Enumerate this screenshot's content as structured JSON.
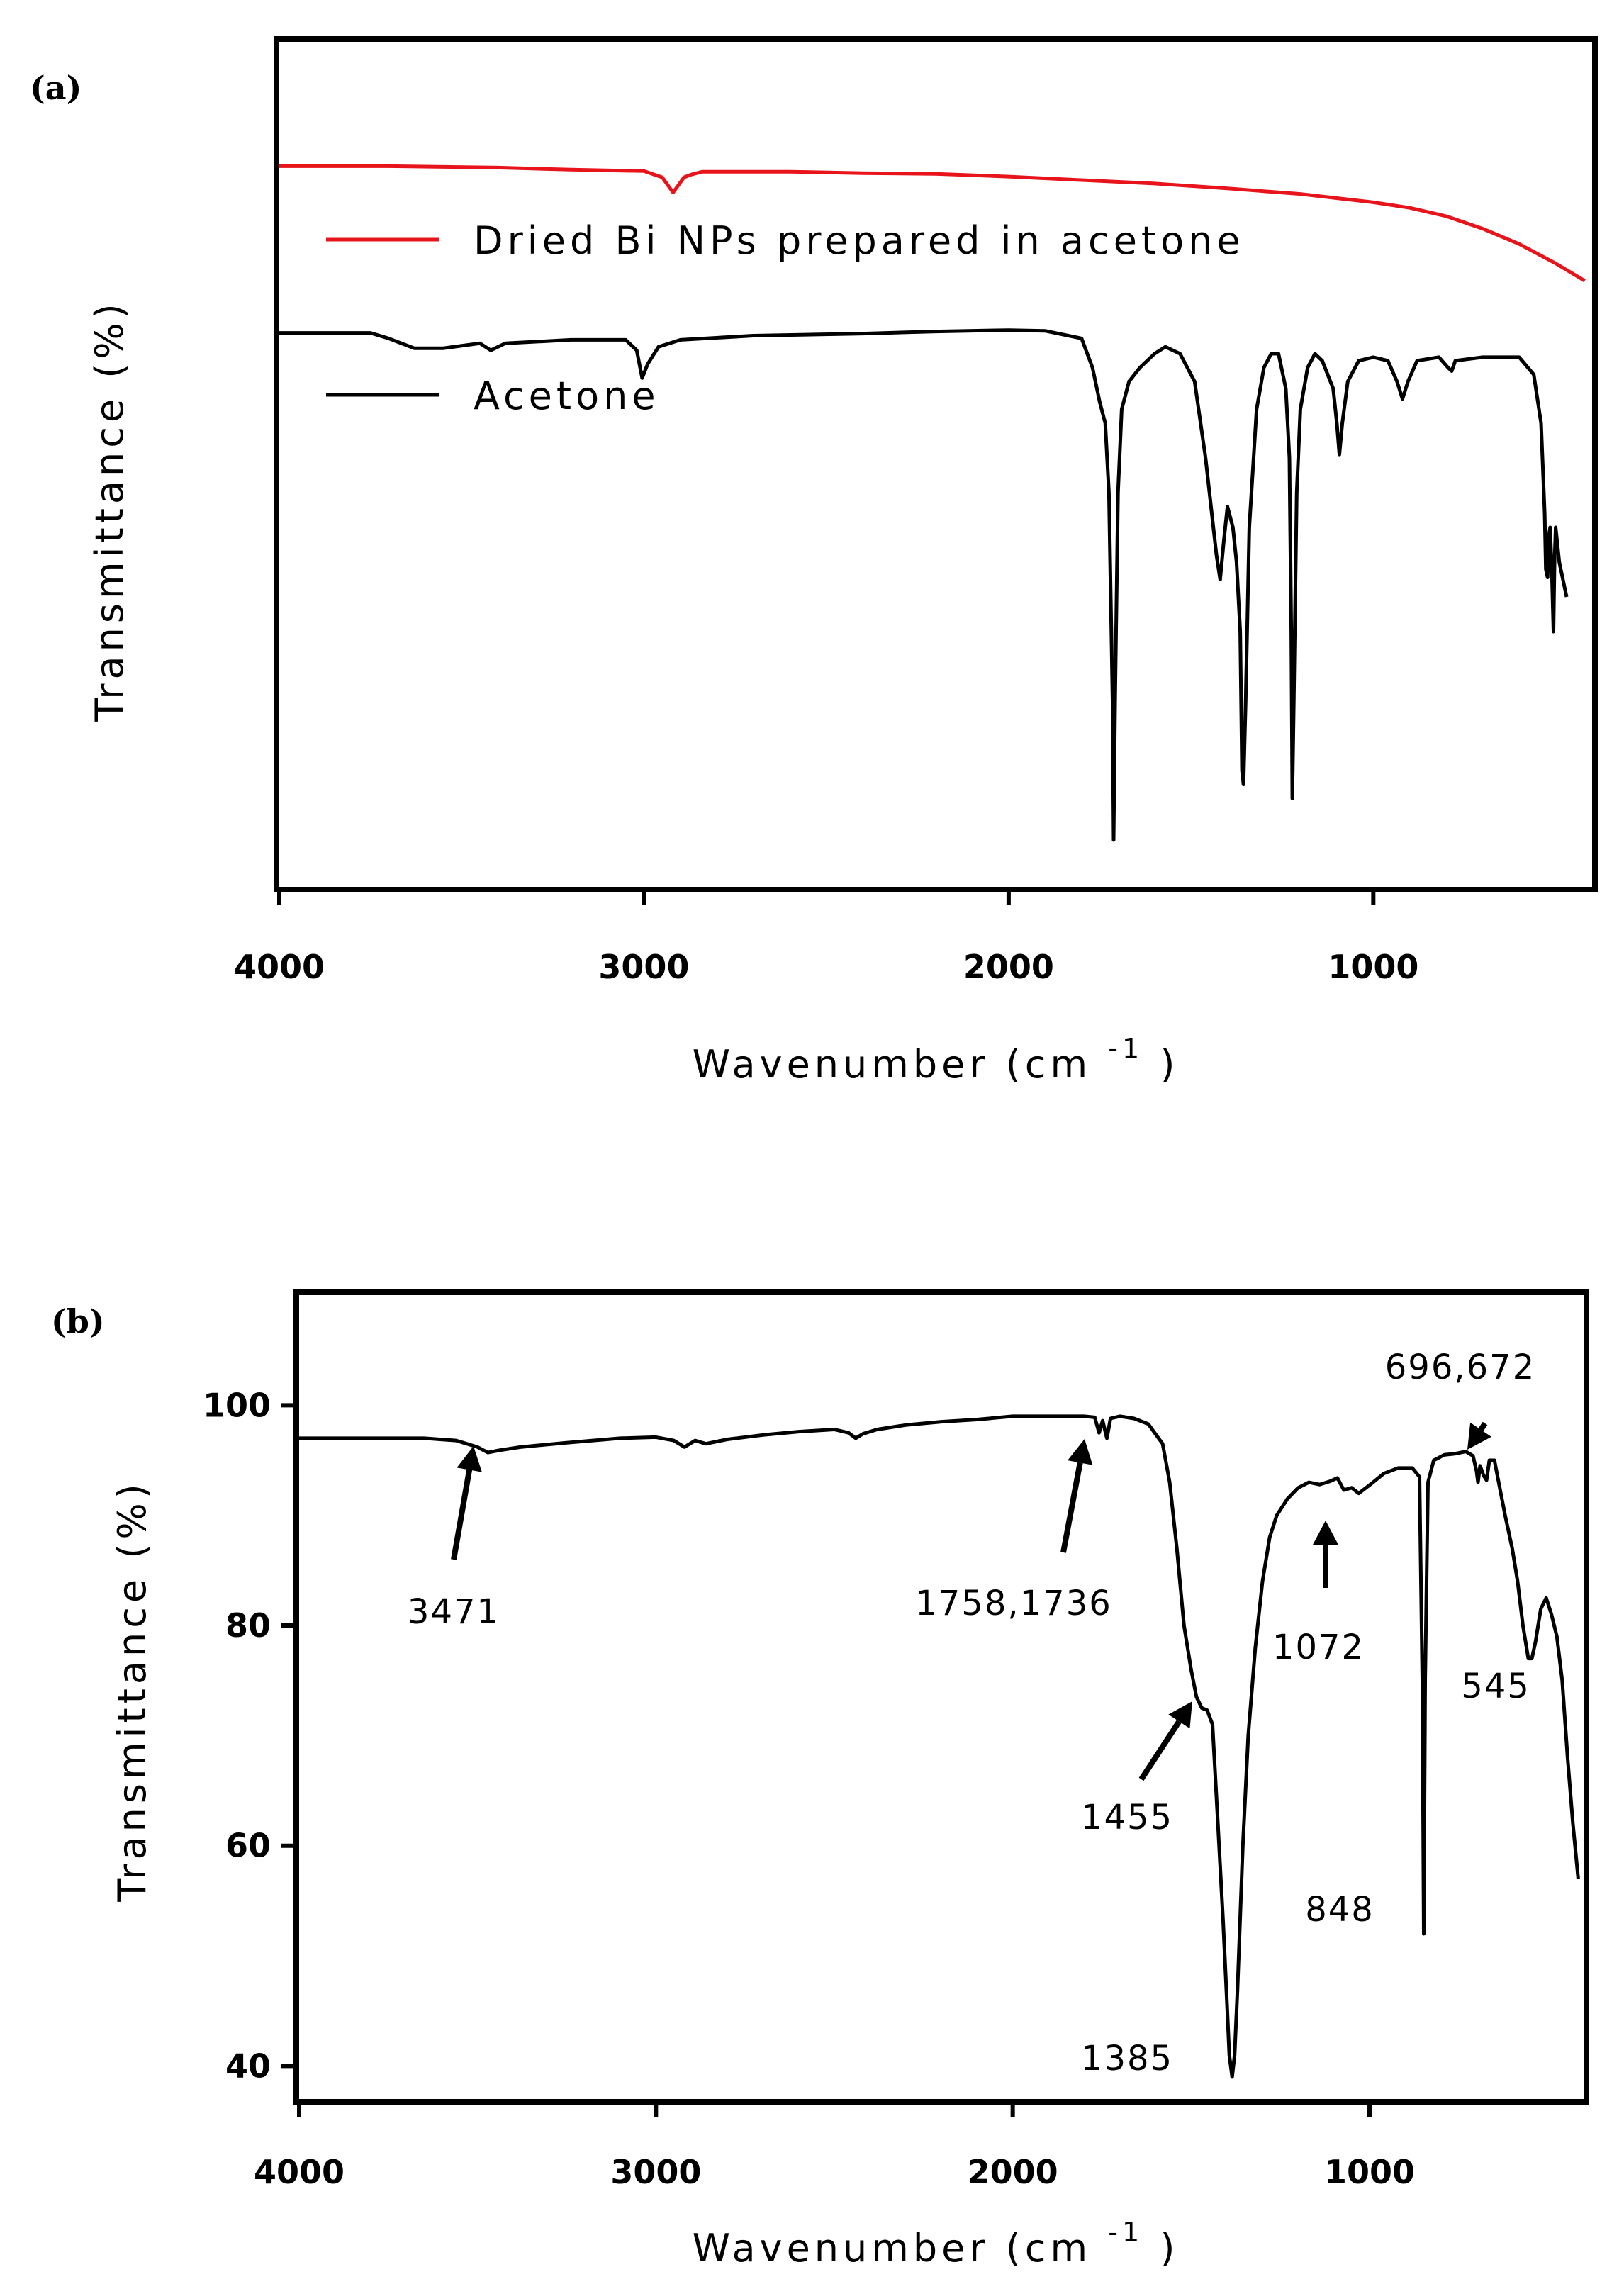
{
  "chart_data": [
    {
      "panel_label": "(a)",
      "type": "line",
      "xlabel": "Wavenumber (cm",
      "xlabel_superscript": "-1",
      "xlabel_close": ")",
      "ylabel": "Transmittance (%)",
      "xlim": [
        4000,
        400
      ],
      "x_reversed": true,
      "y_ticks_shown": false,
      "grid": false,
      "legend_placement": "upper-left inside",
      "xticks": [
        4000,
        3000,
        2000,
        1000
      ],
      "xtick_labels": [
        "4000",
        "3000",
        "2000",
        "1000"
      ],
      "series": [
        {
          "name": "Dried Bi NPs prepared in acetone",
          "color": "#e8141c",
          "points": [
            [
              4000,
              97
            ],
            [
              3700,
              97
            ],
            [
              3400,
              96.8
            ],
            [
              3200,
              96.5
            ],
            [
              3000,
              96.3
            ],
            [
              2950,
              95.4
            ],
            [
              2920,
              93.2
            ],
            [
              2890,
              95.4
            ],
            [
              2870,
              95.8
            ],
            [
              2840,
              96.2
            ],
            [
              2600,
              96.2
            ],
            [
              2400,
              96.0
            ],
            [
              2200,
              95.9
            ],
            [
              2000,
              95.5
            ],
            [
              1800,
              95.0
            ],
            [
              1600,
              94.5
            ],
            [
              1400,
              93.8
            ],
            [
              1200,
              93.0
            ],
            [
              1000,
              91.8
            ],
            [
              900,
              91.0
            ],
            [
              800,
              89.8
            ],
            [
              700,
              88.0
            ],
            [
              600,
              85.8
            ],
            [
              500,
              83.0
            ],
            [
              420,
              80.5
            ]
          ]
        },
        {
          "name": "Acetone",
          "color": "#000000",
          "points": [
            [
              4000,
              73
            ],
            [
              3750,
              73
            ],
            [
              3700,
              72.2
            ],
            [
              3630,
              70.8
            ],
            [
              3550,
              70.8
            ],
            [
              3450,
              71.5
            ],
            [
              3420,
              70.5
            ],
            [
              3380,
              71.5
            ],
            [
              3200,
              72
            ],
            [
              3050,
              72
            ],
            [
              3020,
              70.5
            ],
            [
              3005,
              66.5
            ],
            [
              2990,
              68.5
            ],
            [
              2960,
              71
            ],
            [
              2900,
              72
            ],
            [
              2700,
              72.6
            ],
            [
              2400,
              72.9
            ],
            [
              2200,
              73.2
            ],
            [
              2000,
              73.4
            ],
            [
              1900,
              73.3
            ],
            [
              1800,
              72.2
            ],
            [
              1770,
              68
            ],
            [
              1750,
              63
            ],
            [
              1735,
              60
            ],
            [
              1725,
              50
            ],
            [
              1715,
              20
            ],
            [
              1712,
              0
            ],
            [
              1708,
              20
            ],
            [
              1700,
              50
            ],
            [
              1690,
              62
            ],
            [
              1670,
              66
            ],
            [
              1640,
              68
            ],
            [
              1600,
              70
            ],
            [
              1570,
              71
            ],
            [
              1530,
              70
            ],
            [
              1490,
              66
            ],
            [
              1460,
              55
            ],
            [
              1445,
              48
            ],
            [
              1430,
              41
            ],
            [
              1420,
              37.5
            ],
            [
              1410,
              43
            ],
            [
              1400,
              48
            ],
            [
              1385,
              45
            ],
            [
              1375,
              40
            ],
            [
              1365,
              30
            ],
            [
              1360,
              10
            ],
            [
              1356,
              8
            ],
            [
              1350,
              20
            ],
            [
              1340,
              45
            ],
            [
              1320,
              62
            ],
            [
              1300,
              68
            ],
            [
              1280,
              70
            ],
            [
              1260,
              70
            ],
            [
              1240,
              65
            ],
            [
              1230,
              55
            ],
            [
              1225,
              30
            ],
            [
              1222,
              6
            ],
            [
              1218,
              20
            ],
            [
              1210,
              50
            ],
            [
              1200,
              62
            ],
            [
              1180,
              68
            ],
            [
              1160,
              70
            ],
            [
              1140,
              69
            ],
            [
              1110,
              65
            ],
            [
              1100,
              60
            ],
            [
              1093,
              55.5
            ],
            [
              1085,
              60
            ],
            [
              1070,
              66
            ],
            [
              1040,
              69
            ],
            [
              1000,
              69.5
            ],
            [
              960,
              69
            ],
            [
              935,
              66
            ],
            [
              920,
              63.5
            ],
            [
              905,
              66
            ],
            [
              880,
              69
            ],
            [
              820,
              69.5
            ],
            [
              795,
              68
            ],
            [
              785,
              67.5
            ],
            [
              775,
              69
            ],
            [
              700,
              69.5
            ],
            [
              600,
              69.5
            ],
            [
              560,
              67
            ],
            [
              540,
              60
            ],
            [
              530,
              47
            ],
            [
              527,
              39
            ],
            [
              522,
              37.8
            ],
            [
              518,
              44
            ],
            [
              515,
              45
            ],
            [
              510,
              38
            ],
            [
              506,
              30
            ],
            [
              503,
              40
            ],
            [
              500,
              45
            ],
            [
              490,
              40
            ],
            [
              470,
              35
            ]
          ]
        }
      ]
    },
    {
      "panel_label": "(b)",
      "type": "line",
      "xlabel": "Wavenumber (cm",
      "xlabel_superscript": "-1",
      "xlabel_close": ")",
      "ylabel": "Transmittance (%)",
      "xlim": [
        4000,
        400
      ],
      "ylim": [
        37,
        110
      ],
      "x_reversed": true,
      "grid": false,
      "xticks": [
        4000,
        3000,
        2000,
        1000
      ],
      "xtick_labels": [
        "4000",
        "3000",
        "2000",
        "1000"
      ],
      "yticks": [
        40,
        60,
        80,
        100
      ],
      "ytick_labels": [
        "40",
        "60",
        "80",
        "100"
      ],
      "series": [
        {
          "color": "#000000",
          "points": [
            [
              4000,
              97
            ],
            [
              3800,
              97
            ],
            [
              3650,
              97
            ],
            [
              3560,
              96.8
            ],
            [
              3500,
              96.2
            ],
            [
              3471,
              95.7
            ],
            [
              3440,
              95.9
            ],
            [
              3380,
              96.2
            ],
            [
              3250,
              96.6
            ],
            [
              3100,
              97
            ],
            [
              3000,
              97.1
            ],
            [
              2950,
              96.8
            ],
            [
              2920,
              96.2
            ],
            [
              2890,
              96.8
            ],
            [
              2860,
              96.5
            ],
            [
              2800,
              96.9
            ],
            [
              2700,
              97.3
            ],
            [
              2600,
              97.6
            ],
            [
              2500,
              97.8
            ],
            [
              2460,
              97.5
            ],
            [
              2440,
              97
            ],
            [
              2420,
              97.4
            ],
            [
              2380,
              97.8
            ],
            [
              2300,
              98.2
            ],
            [
              2200,
              98.5
            ],
            [
              2100,
              98.7
            ],
            [
              2000,
              99
            ],
            [
              1900,
              99
            ],
            [
              1800,
              99
            ],
            [
              1770,
              98.9
            ],
            [
              1758,
              97.5
            ],
            [
              1748,
              98.6
            ],
            [
              1736,
              97
            ],
            [
              1726,
              98.8
            ],
            [
              1700,
              99
            ],
            [
              1660,
              98.8
            ],
            [
              1620,
              98.3
            ],
            [
              1580,
              96.5
            ],
            [
              1560,
              93
            ],
            [
              1540,
              87
            ],
            [
              1520,
              80
            ],
            [
              1500,
              76
            ],
            [
              1485,
              73.5
            ],
            [
              1470,
              72.5
            ],
            [
              1455,
              72.3
            ],
            [
              1440,
              71
            ],
            [
              1425,
              62
            ],
            [
              1410,
              53
            ],
            [
              1400,
              46
            ],
            [
              1393,
              41
            ],
            [
              1385,
              39
            ],
            [
              1378,
              41
            ],
            [
              1370,
              47
            ],
            [
              1355,
              60
            ],
            [
              1340,
              70
            ],
            [
              1320,
              78
            ],
            [
              1300,
              84
            ],
            [
              1280,
              88
            ],
            [
              1260,
              90
            ],
            [
              1230,
              91.5
            ],
            [
              1200,
              92.5
            ],
            [
              1170,
              93
            ],
            [
              1140,
              92.8
            ],
            [
              1110,
              93.1
            ],
            [
              1090,
              93.4
            ],
            [
              1072,
              92.3
            ],
            [
              1050,
              92.5
            ],
            [
              1030,
              92
            ],
            [
              1010,
              92.5
            ],
            [
              990,
              93
            ],
            [
              960,
              93.8
            ],
            [
              920,
              94.3
            ],
            [
              880,
              94.3
            ],
            [
              860,
              93.5
            ],
            [
              852,
              75
            ],
            [
              848,
              52
            ],
            [
              844,
              75
            ],
            [
              836,
              93
            ],
            [
              820,
              95
            ],
            [
              790,
              95.5
            ],
            [
              760,
              95.6
            ],
            [
              730,
              95.8
            ],
            [
              710,
              95.4
            ],
            [
              700,
              94
            ],
            [
              696,
              93
            ],
            [
              690,
              94.5
            ],
            [
              680,
              93.6
            ],
            [
              672,
              93.2
            ],
            [
              664,
              95
            ],
            [
              650,
              95
            ],
            [
              635,
              92.5
            ],
            [
              620,
              90
            ],
            [
              600,
              87
            ],
            [
              585,
              84
            ],
            [
              570,
              80
            ],
            [
              555,
              77
            ],
            [
              545,
              77
            ],
            [
              535,
              78.5
            ],
            [
              520,
              81.5
            ],
            [
              505,
              82.5
            ],
            [
              490,
              81
            ],
            [
              475,
              79
            ],
            [
              460,
              75
            ],
            [
              445,
              68
            ],
            [
              430,
              62
            ],
            [
              415,
              57
            ]
          ]
        }
      ],
      "annotations": [
        {
          "text": "3471",
          "x": 3471,
          "y": 95.7
        },
        {
          "text": "1758,1736",
          "x": 1747,
          "y": 97
        },
        {
          "text": "1455",
          "x": 1455,
          "y": 72.3
        },
        {
          "text": "1385",
          "x": 1385,
          "y": 39
        },
        {
          "text": "1072",
          "x": 1072,
          "y": 92.3
        },
        {
          "text": "848",
          "x": 848,
          "y": 52
        },
        {
          "text": "696,672",
          "x": 680,
          "y": 93
        },
        {
          "text": "545",
          "x": 545,
          "y": 77
        }
      ]
    }
  ]
}
